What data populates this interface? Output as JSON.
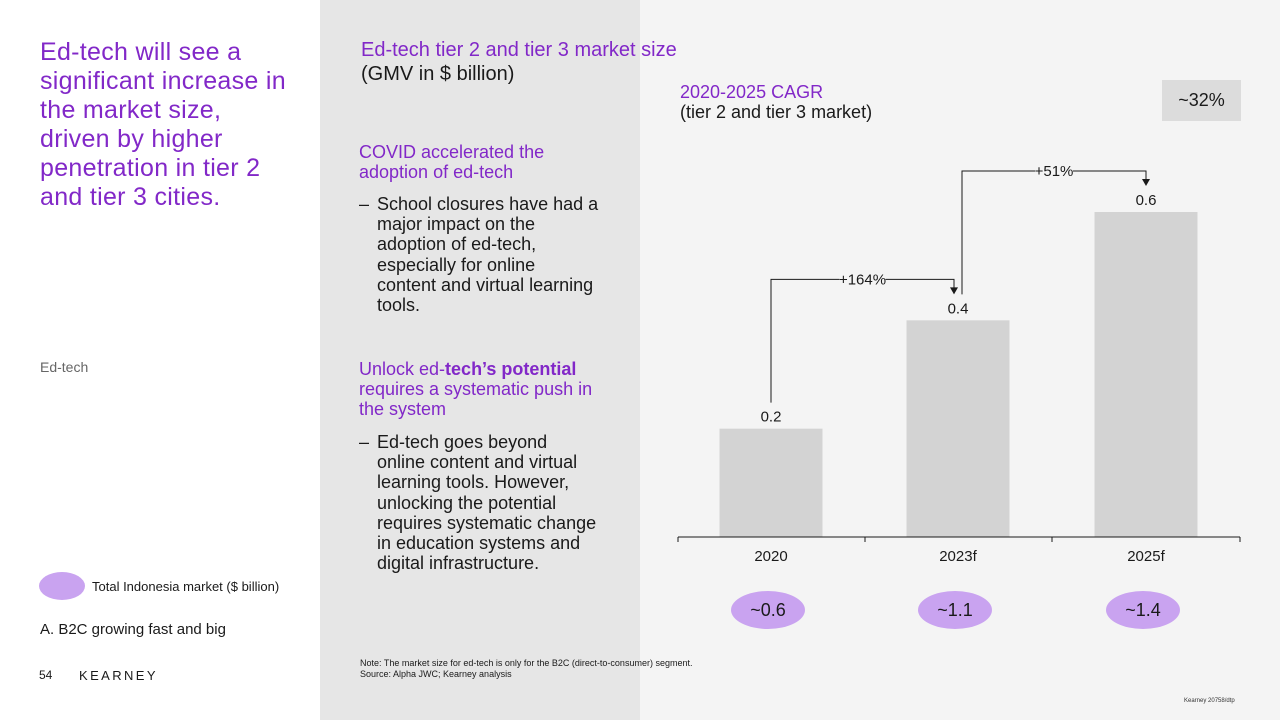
{
  "headline": "Ed-tech will see a significant increase in the market size, driven by higher penetration in tier 2 and tier 3 cities.",
  "section_tag": "Ed-tech",
  "legend": {
    "label": "Total Indonesia market ($ billion)",
    "color": "#c9a3f0"
  },
  "subtitle_a": "A. B2C growing fast and big",
  "page_number": "54",
  "brand": "KEARNEY",
  "blocks": [
    {
      "heading_pre": "COVID accelerated the adoption of ed-tech",
      "heading_bold": "",
      "heading_post": "",
      "bullet": "School closures have had a major impact on the adoption of ed-tech, especially for online content and virtual learning tools."
    },
    {
      "heading_pre": "Unlock ed-",
      "heading_bold": "tech’s potential",
      "heading_post": " requires a systematic push in the system",
      "bullet": "Ed-tech goes beyond online content and virtual learning tools. However, unlocking the potential requires systematic change in education systems and digital infrastructure."
    }
  ],
  "bullet_dash": "–",
  "cagr": {
    "title": "2020-2025 CAGR",
    "subtitle": "(tier 2 and tier 3 market)",
    "value": "~32%"
  },
  "note": "Note: The market size for ed-tech is only for the B2C (direct-to-consumer) segment.",
  "source": "Source: Alpha JWC; Kearney analysis",
  "code": "Kearney 20758/dtp",
  "colors": {
    "accent": "#8228c8",
    "bar": "#d3d3d3",
    "ellipse": "#c9a3f0"
  },
  "chart_data": {
    "type": "bar",
    "title": "Ed-tech tier 2 and tier 3 market size",
    "subtitle": "(GMV in $ billion)",
    "categories": [
      "2020",
      "2023f",
      "2025f"
    ],
    "values": [
      0.2,
      0.4,
      0.6
    ],
    "value_labels": [
      "0.2",
      "0.4",
      "0.6"
    ],
    "totals": [
      "~0.6",
      "~1.1",
      "~1.4"
    ],
    "growth_arrows": [
      {
        "from": "2020",
        "to": "2023f",
        "label": "+164%"
      },
      {
        "from": "2023f",
        "to": "2025f",
        "label": "+51%"
      }
    ],
    "ylim": [
      0,
      0.6
    ],
    "grid": false
  }
}
